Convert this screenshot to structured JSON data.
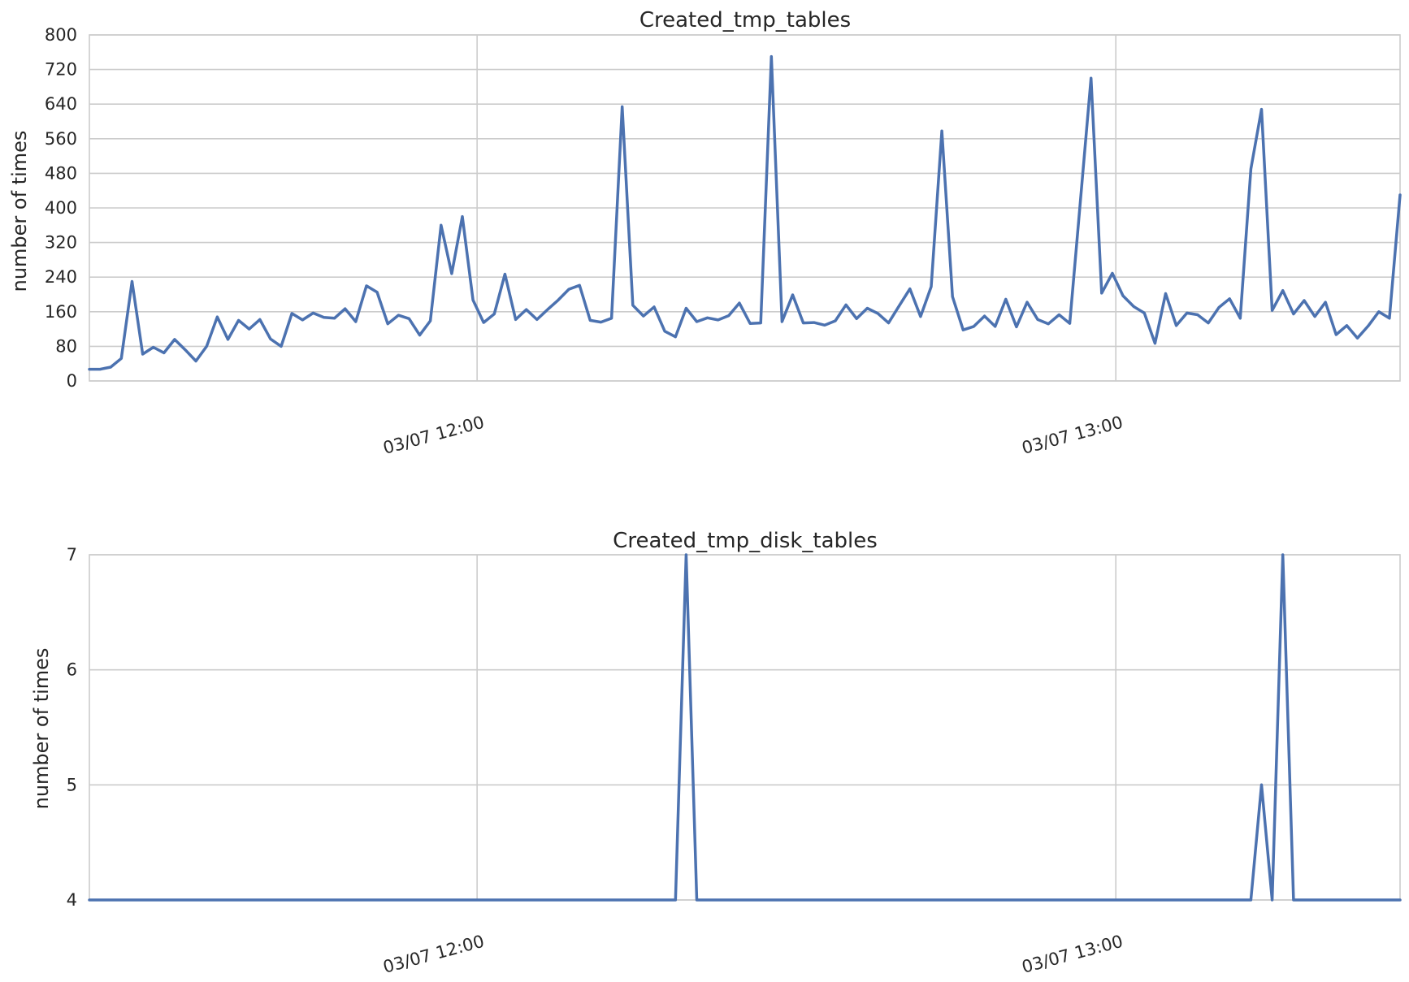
{
  "colors": {
    "series": "#4c72b0",
    "grid": "#cccccc",
    "text": "#262626"
  },
  "chart_data": [
    {
      "type": "line",
      "title": "Created_tmp_tables",
      "xlabel": "",
      "ylabel": "number of times",
      "ylim": [
        0,
        800
      ],
      "yticks": [
        0,
        80,
        160,
        240,
        320,
        400,
        480,
        560,
        640,
        720,
        800
      ],
      "ytick_labels": [
        "0",
        "80",
        "160",
        "240",
        "320",
        "400",
        "480",
        "560",
        "640",
        "720",
        "800"
      ],
      "x_range_minutes": [
        11.393,
        13.445
      ],
      "xticks": [
        12,
        13
      ],
      "xtick_labels": [
        "03/07 12:00",
        "03/07 13:00"
      ],
      "grid": true,
      "legend": "none",
      "series": [
        {
          "values": [
            27,
            27,
            32,
            52,
            230,
            62,
            78,
            65,
            96,
            72,
            46,
            80,
            148,
            96,
            140,
            120,
            142,
            97,
            80,
            156,
            141,
            157,
            147,
            145,
            167,
            137,
            220,
            205,
            132,
            152,
            144,
            106,
            139,
            360,
            248,
            380,
            187,
            135,
            155,
            247,
            142,
            165,
            142,
            165,
            187,
            212,
            221,
            140,
            136,
            145,
            634,
            175,
            150,
            171,
            115,
            102,
            168,
            137,
            146,
            141,
            151,
            180,
            133,
            134,
            750,
            137,
            199,
            134,
            135,
            129,
            139,
            176,
            144,
            168,
            156,
            134,
            174,
            213,
            149,
            218,
            578,
            195,
            118,
            126,
            150,
            126,
            189,
            125,
            182,
            142,
            132,
            153,
            133,
            416,
            700,
            203,
            249,
            197,
            172,
            157,
            87,
            202,
            128,
            157,
            153,
            134,
            170,
            190,
            145,
            490,
            628,
            163,
            209,
            155,
            186,
            149,
            182,
            107,
            128,
            99,
            127,
            160,
            145,
            430
          ]
        }
      ]
    },
    {
      "type": "line",
      "title": "Created_tmp_disk_tables",
      "xlabel": "",
      "ylabel": "number of times",
      "ylim": [
        4,
        7
      ],
      "yticks": [
        4,
        5,
        6,
        7
      ],
      "ytick_labels": [
        "4",
        "5",
        "6",
        "7"
      ],
      "x_range_minutes": [
        11.393,
        13.445
      ],
      "xticks": [
        12,
        13
      ],
      "xtick_labels": [
        "03/07 12:00",
        "03/07 13:00"
      ],
      "grid": true,
      "legend": "none",
      "series": [
        {
          "values": [
            4,
            4,
            4,
            4,
            4,
            4,
            4,
            4,
            4,
            4,
            4,
            4,
            4,
            4,
            4,
            4,
            4,
            4,
            4,
            4,
            4,
            4,
            4,
            4,
            4,
            4,
            4,
            4,
            4,
            4,
            4,
            4,
            4,
            4,
            4,
            4,
            4,
            4,
            4,
            4,
            4,
            4,
            4,
            4,
            4,
            4,
            4,
            4,
            4,
            4,
            4,
            4,
            4,
            4,
            4,
            4,
            7,
            4,
            4,
            4,
            4,
            4,
            4,
            4,
            4,
            4,
            4,
            4,
            4,
            4,
            4,
            4,
            4,
            4,
            4,
            4,
            4,
            4,
            4,
            4,
            4,
            4,
            4,
            4,
            4,
            4,
            4,
            4,
            4,
            4,
            4,
            4,
            4,
            4,
            4,
            4,
            4,
            4,
            4,
            4,
            4,
            4,
            4,
            4,
            4,
            4,
            4,
            4,
            4,
            4,
            5,
            4,
            7,
            4,
            4,
            4,
            4,
            4,
            4,
            4,
            4,
            4,
            4,
            4
          ]
        }
      ]
    }
  ]
}
